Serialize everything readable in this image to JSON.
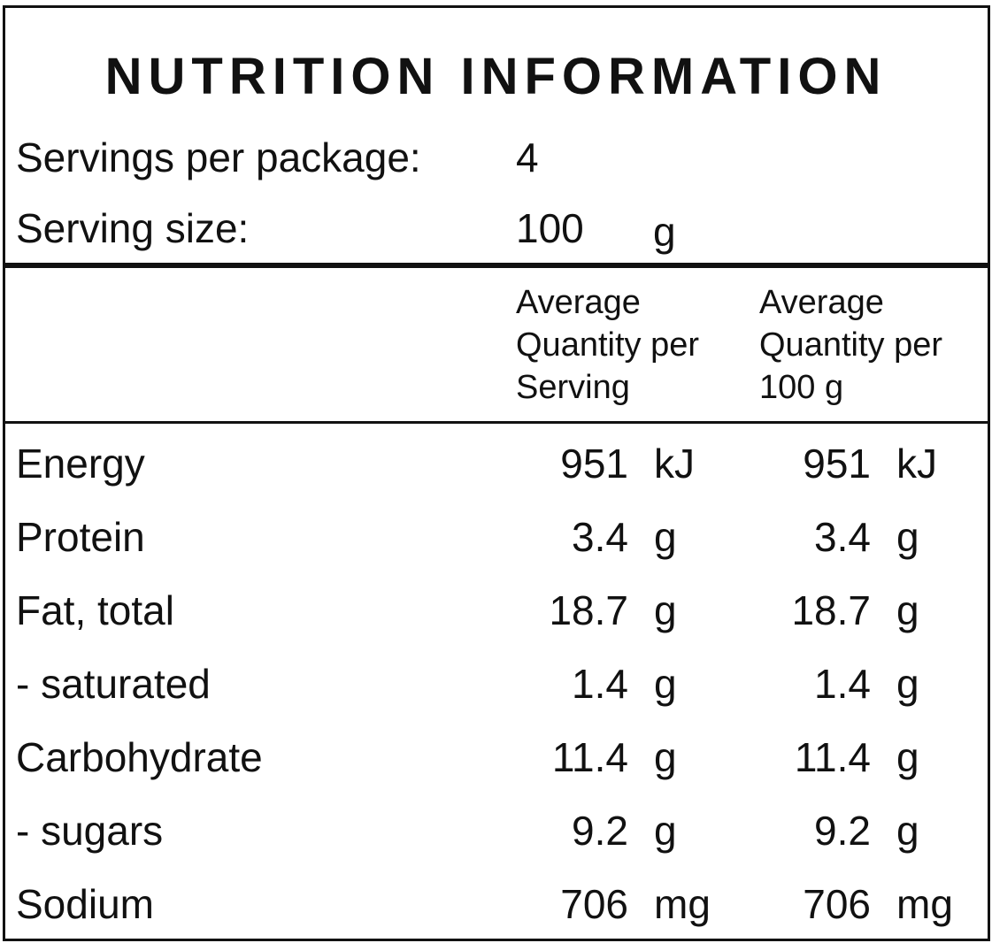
{
  "title": "NUTRITION INFORMATION",
  "servings": {
    "per_package_label": "Servings per package:",
    "per_package_value": "4",
    "size_label": "Serving size:",
    "size_value": "100",
    "size_unit": "g"
  },
  "columns": {
    "per_serving": "Average\nQuantity per\nServing",
    "per_100g": "Average\nQuantity per\n100 g"
  },
  "rows": [
    {
      "name": "Energy",
      "serving_value": "951",
      "serving_unit": "kJ",
      "per100_value": "951",
      "per100_unit": "kJ"
    },
    {
      "name": "Protein",
      "serving_value": "3.4",
      "serving_unit": "g",
      "per100_value": "3.4",
      "per100_unit": "g"
    },
    {
      "name": "Fat, total",
      "serving_value": "18.7",
      "serving_unit": "g",
      "per100_value": "18.7",
      "per100_unit": "g"
    },
    {
      "name": "- saturated",
      "serving_value": "1.4",
      "serving_unit": "g",
      "per100_value": "1.4",
      "per100_unit": "g"
    },
    {
      "name": "Carbohydrate",
      "serving_value": "11.4",
      "serving_unit": "g",
      "per100_value": "11.4",
      "per100_unit": "g"
    },
    {
      "name": "- sugars",
      "serving_value": "9.2",
      "serving_unit": "g",
      "per100_value": "9.2",
      "per100_unit": "g"
    },
    {
      "name": "Sodium",
      "serving_value": "706",
      "serving_unit": "mg",
      "per100_value": "706",
      "per100_unit": "mg"
    }
  ]
}
